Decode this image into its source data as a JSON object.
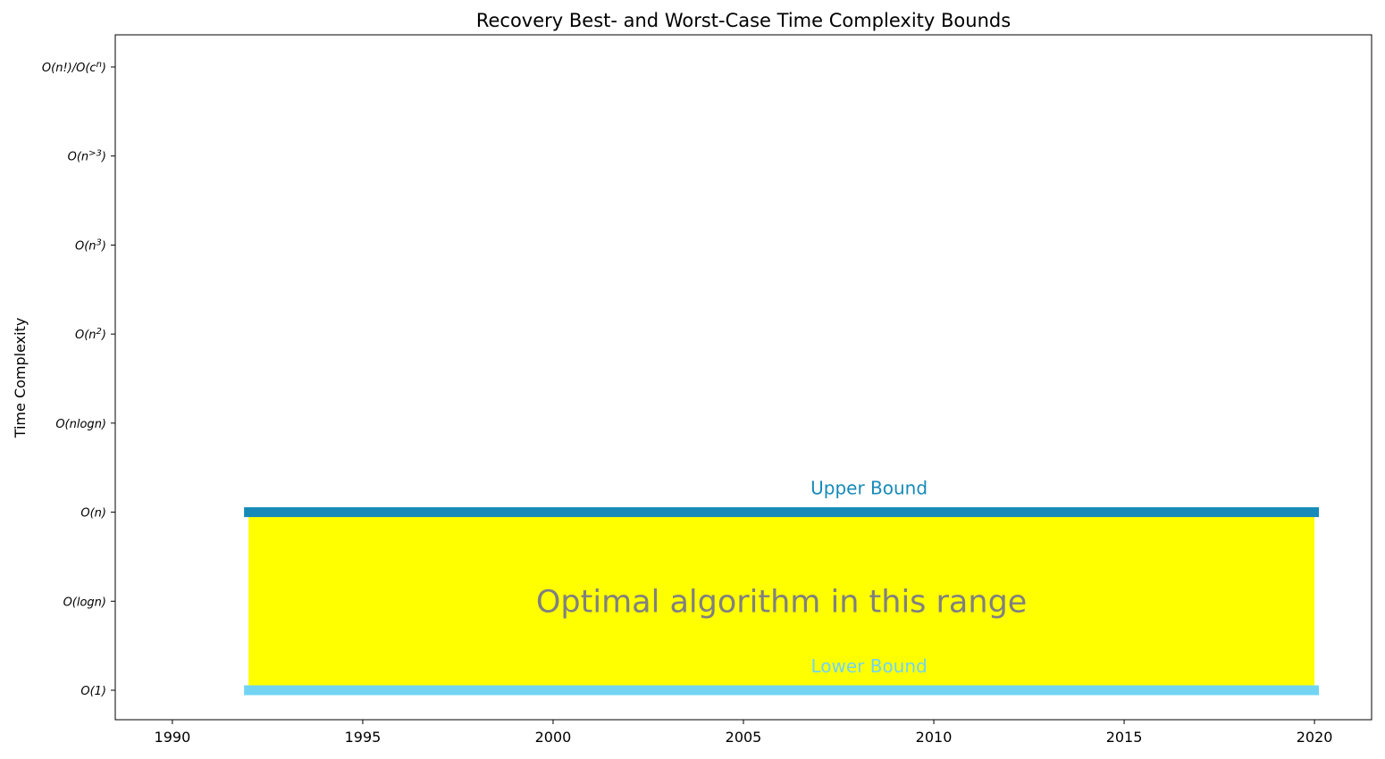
{
  "chart_data": {
    "type": "bar",
    "title": "Recovery Best- and Worst-Case Time Complexity Bounds",
    "ylabel": "Time Complexity",
    "xlim": [
      1988.5,
      2021.5
    ],
    "x_ticks": [
      1990,
      1995,
      2000,
      2005,
      2010,
      2015,
      2020
    ],
    "y_categories": [
      "O(1)",
      "O(logn)",
      "O(n)",
      "O(nlogn)",
      "O(n²)",
      "O(n³)",
      "O(n>³)",
      "O(n!)/O(cⁿ)"
    ],
    "grid": false,
    "bounds": [
      {
        "name": "Upper Bound",
        "level": "O(n)",
        "x_start": 1992,
        "x_end": 2020,
        "color": "#168ab8"
      },
      {
        "name": "Lower Bound",
        "level": "O(1)",
        "x_start": 1992,
        "x_end": 2020,
        "color": "#72d4f2"
      }
    ],
    "optimal_range": {
      "label": "Optimal algorithm in this range",
      "from_level": "O(1)",
      "to_level": "O(n)",
      "x_start": 1992,
      "x_end": 2020,
      "color": "#ffff00",
      "label_color": "#808080"
    }
  }
}
